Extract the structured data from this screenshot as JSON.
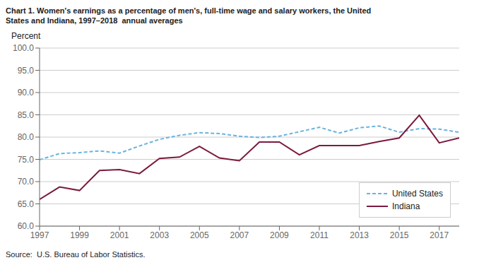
{
  "chart_data": {
    "type": "line",
    "title": "Chart 1. Women's earnings as a percentage of men's, full-time wage and salary workers, the United",
    "subtitle": "States and Indiana, 1997–2018  annual averages",
    "y_label": "Percent",
    "annotations": [
      "Source:  U.S. Bureau of Labor Statistics."
    ],
    "x": [
      1997,
      1998,
      1999,
      2000,
      2001,
      2002,
      2003,
      2004,
      2005,
      2006,
      2007,
      2008,
      2009,
      2010,
      2011,
      2012,
      2013,
      2014,
      2015,
      2016,
      2017,
      2018
    ],
    "series": [
      {
        "name": "United States",
        "color": "#6ab3e0",
        "line_style": "dashed",
        "values": [
          74.9,
          76.3,
          76.5,
          76.9,
          76.4,
          78.0,
          79.5,
          80.4,
          81.0,
          80.8,
          80.2,
          79.9,
          80.2,
          81.2,
          82.2,
          80.9,
          82.1,
          82.5,
          81.1,
          81.9,
          81.8,
          81.1
        ]
      },
      {
        "name": "Indiana",
        "color": "#7b1a3e",
        "line_style": "solid",
        "values": [
          66.0,
          68.8,
          68.0,
          72.5,
          72.7,
          71.8,
          75.2,
          75.5,
          77.9,
          75.3,
          74.7,
          78.9,
          78.9,
          76.0,
          78.1,
          78.1,
          78.1,
          79.0,
          79.8,
          84.9,
          78.7,
          79.8
        ]
      }
    ],
    "xlim": [
      1997,
      2018
    ],
    "xticks": [
      1997,
      1999,
      2001,
      2003,
      2005,
      2007,
      2009,
      2011,
      2013,
      2015,
      2017
    ],
    "ylim": [
      60.0,
      100.0
    ],
    "yticks": [
      {
        "value": 60.0,
        "label": "60.0"
      },
      {
        "value": 65.0,
        "label": "65.0"
      },
      {
        "value": 70.0,
        "label": "70.0"
      },
      {
        "value": 75.0,
        "label": "75.0"
      },
      {
        "value": 80.0,
        "label": "80.0"
      },
      {
        "value": 85.0,
        "label": "85.0"
      },
      {
        "value": 90.0,
        "label": "90.0"
      },
      {
        "value": 95.0,
        "label": "95.0"
      },
      {
        "value": 100.0,
        "label": "100.0"
      }
    ],
    "grid": "y",
    "legend": "lower right"
  }
}
